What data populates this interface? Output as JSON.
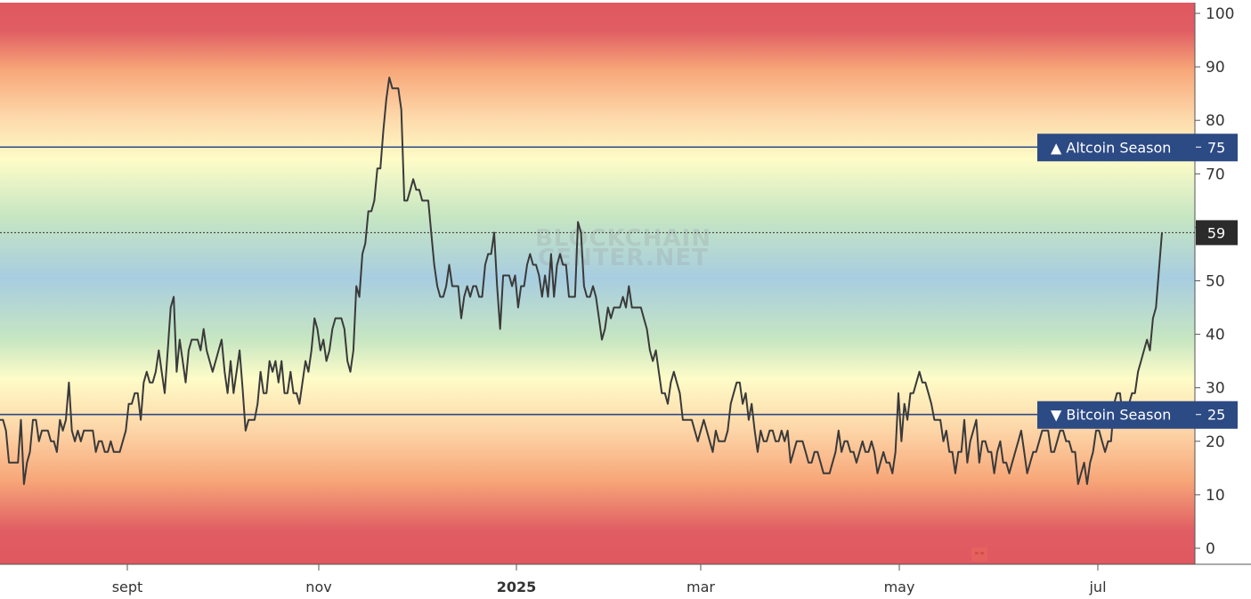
{
  "chart_data": {
    "type": "line",
    "x_tick_labels": [
      {
        "label": "sept",
        "bold": false
      },
      {
        "label": "nov",
        "bold": false
      },
      {
        "label": "2025",
        "bold": true
      },
      {
        "label": "mar",
        "bold": false
      },
      {
        "label": "may",
        "bold": false
      },
      {
        "label": "jul",
        "bold": false
      }
    ],
    "y_ticks": [
      "0",
      "10",
      "20",
      "30",
      "40",
      "50",
      "60",
      "70",
      "80",
      "90",
      "100"
    ],
    "ylim": [
      -3,
      102
    ],
    "series": [
      {
        "color": "#3a3a3a",
        "values": [
          24,
          24,
          22,
          16,
          16,
          16,
          16,
          24,
          12,
          16,
          18,
          24,
          24,
          20,
          22,
          22,
          22,
          20,
          20,
          18,
          24,
          22,
          24,
          31,
          22,
          20,
          22,
          20,
          22,
          22,
          22,
          22,
          18,
          20,
          20,
          18,
          18,
          20,
          18,
          18,
          18,
          20,
          22,
          27,
          27,
          29,
          29,
          24,
          31,
          33,
          31,
          31,
          33,
          37,
          33,
          29,
          37,
          45,
          47,
          33,
          39,
          35,
          31,
          37,
          39,
          39,
          39,
          37,
          41,
          37,
          35,
          33,
          35,
          37,
          39,
          33,
          29,
          35,
          29,
          33,
          37,
          30,
          22,
          24,
          24,
          24,
          27,
          33,
          29,
          29,
          35,
          33,
          35,
          31,
          35,
          29,
          29,
          33,
          29,
          29,
          27,
          31,
          35,
          33,
          37,
          43,
          41,
          37,
          39,
          35,
          37,
          41,
          43,
          43,
          43,
          41,
          35,
          33,
          37,
          49,
          47,
          55,
          57,
          63,
          63,
          65,
          71,
          71,
          78,
          84,
          88,
          86,
          86,
          86,
          82,
          65,
          65,
          67,
          69,
          67,
          67,
          65,
          65,
          65,
          59,
          53,
          49,
          47,
          47,
          49,
          53,
          49,
          49,
          49,
          43,
          47,
          49,
          47,
          49,
          49,
          47,
          47,
          53,
          55,
          55,
          59,
          49,
          41,
          51,
          51,
          51,
          49,
          51,
          45,
          49,
          49,
          53,
          55,
          53,
          53,
          51,
          47,
          51,
          47,
          55,
          47,
          53,
          55,
          53,
          53,
          47,
          47,
          47,
          61,
          59,
          49,
          47,
          47,
          49,
          47,
          43,
          39,
          41,
          45,
          43,
          45,
          45,
          45,
          47,
          45,
          49,
          45,
          45,
          45,
          45,
          43,
          41,
          37,
          35,
          37,
          33,
          29,
          29,
          27,
          31,
          33,
          31,
          29,
          24,
          24,
          24,
          24,
          22,
          20,
          22,
          24,
          22,
          20,
          18,
          22,
          20,
          20,
          20,
          22,
          27,
          29,
          31,
          31,
          27,
          29,
          24,
          27,
          22,
          18,
          22,
          20,
          20,
          22,
          22,
          20,
          20,
          22,
          20,
          22,
          16,
          18,
          20,
          20,
          20,
          18,
          16,
          16,
          18,
          18,
          16,
          14,
          14,
          14,
          16,
          18,
          22,
          18,
          20,
          20,
          18,
          18,
          16,
          18,
          20,
          18,
          18,
          20,
          18,
          14,
          16,
          18,
          16,
          16,
          14,
          18,
          29,
          20,
          27,
          24,
          29,
          29,
          31,
          33,
          31,
          31,
          29,
          27,
          24,
          24,
          24,
          20,
          22,
          18,
          18,
          14,
          18,
          18,
          24,
          16,
          20,
          22,
          24,
          16,
          20,
          20,
          18,
          18,
          14,
          18,
          20,
          16,
          16,
          14,
          16,
          18,
          20,
          22,
          18,
          14,
          16,
          18,
          18,
          20,
          22,
          22,
          22,
          18,
          18,
          20,
          22,
          22,
          20,
          20,
          18,
          18,
          12,
          14,
          16,
          12,
          16,
          18,
          22,
          22,
          20,
          18,
          20,
          20,
          27,
          29,
          29,
          24,
          24,
          27,
          29,
          29,
          33,
          35,
          37,
          39,
          37,
          43,
          45,
          52,
          59
        ]
      }
    ],
    "reference_lines": [
      {
        "value": 75,
        "label": "▲ Altcoin Season",
        "value_label": "75",
        "color": "#2c4a84"
      },
      {
        "value": 25,
        "label": "▼ Bitcoin Season",
        "value_label": "25",
        "color": "#2c4a84"
      }
    ],
    "current_value": {
      "value": 59,
      "label": "59"
    },
    "grid": false,
    "legend": "none"
  },
  "watermark": {
    "line1": "BLOCKCHAIN",
    "line2": "CENTER.NET"
  }
}
